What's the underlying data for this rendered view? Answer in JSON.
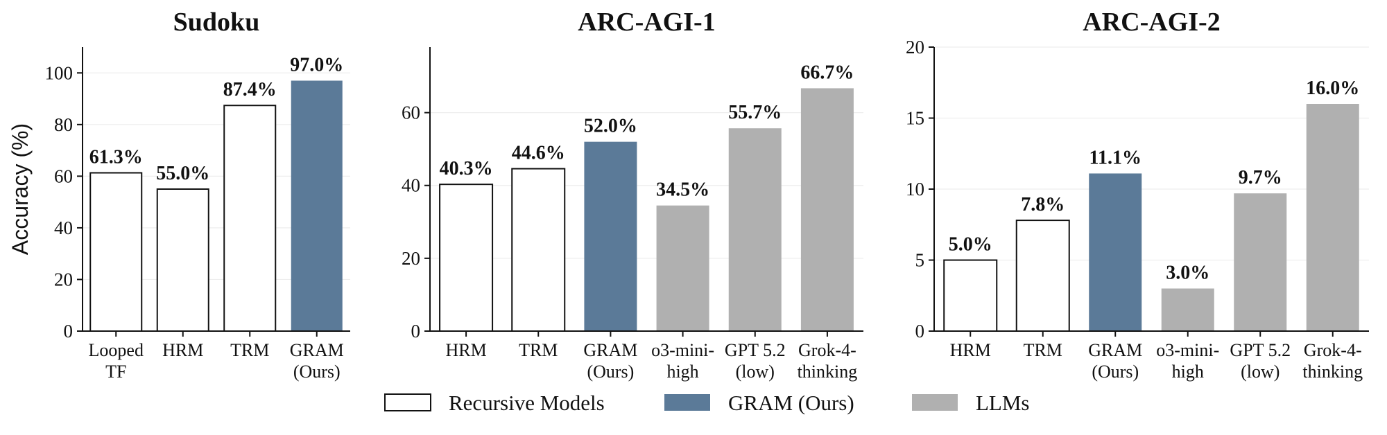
{
  "colors": {
    "recursive": "#ffffff",
    "gram": "#5b7a98",
    "llm": "#b0b0b0",
    "edge": "#111111",
    "grid": "#eeeeee"
  },
  "legend": {
    "placement": "bottom-center",
    "items": [
      {
        "label": "Recursive Models",
        "group": "recursive"
      },
      {
        "label": "GRAM (Ours)",
        "group": "gram"
      },
      {
        "label": "LLMs",
        "group": "llm"
      }
    ]
  },
  "chart_data": [
    {
      "type": "bar",
      "title": "Sudoku",
      "ylabel": "Accuracy (%)",
      "xlabel": "",
      "ylim": [
        0,
        110
      ],
      "yticks": [
        0,
        20,
        40,
        60,
        80,
        100
      ],
      "grid": true,
      "categories": [
        [
          "Looped",
          "TF"
        ],
        [
          "HRM"
        ],
        [
          "TRM"
        ],
        [
          "GRAM",
          "(Ours)"
        ]
      ],
      "groups": [
        "recursive",
        "recursive",
        "recursive",
        "gram"
      ],
      "values": [
        61.3,
        55.0,
        87.4,
        97.0
      ],
      "data_labels": [
        "61.3%",
        "55.0%",
        "87.4%",
        "97.0%"
      ]
    },
    {
      "type": "bar",
      "title": "ARC-AGI-1",
      "ylabel": "",
      "xlabel": "",
      "ylim": [
        0,
        78
      ],
      "yticks": [
        0,
        20,
        40,
        60
      ],
      "grid": true,
      "categories": [
        [
          "HRM"
        ],
        [
          "TRM"
        ],
        [
          "GRAM",
          "(Ours)"
        ],
        [
          "o3-mini-",
          "high"
        ],
        [
          "GPT 5.2",
          "(low)"
        ],
        [
          "Grok-4-",
          "thinking"
        ]
      ],
      "groups": [
        "recursive",
        "recursive",
        "gram",
        "llm",
        "llm",
        "llm"
      ],
      "values": [
        40.3,
        44.6,
        52.0,
        34.5,
        55.7,
        66.7
      ],
      "data_labels": [
        "40.3%",
        "44.6%",
        "52.0%",
        "34.5%",
        "55.7%",
        "66.7%"
      ]
    },
    {
      "type": "bar",
      "title": "ARC-AGI-2",
      "ylabel": "",
      "xlabel": "",
      "ylim": [
        0,
        20
      ],
      "yticks": [
        0,
        5,
        10,
        15,
        20
      ],
      "grid": true,
      "categories": [
        [
          "HRM"
        ],
        [
          "TRM"
        ],
        [
          "GRAM",
          "(Ours)"
        ],
        [
          "o3-mini-",
          "high"
        ],
        [
          "GPT 5.2",
          "(low)"
        ],
        [
          "Grok-4-",
          "thinking"
        ]
      ],
      "groups": [
        "recursive",
        "recursive",
        "gram",
        "llm",
        "llm",
        "llm"
      ],
      "values": [
        5.0,
        7.8,
        11.1,
        3.0,
        9.7,
        16.0
      ],
      "data_labels": [
        "5.0%",
        "7.8%",
        "11.1%",
        "3.0%",
        "9.7%",
        "16.0%"
      ]
    }
  ]
}
